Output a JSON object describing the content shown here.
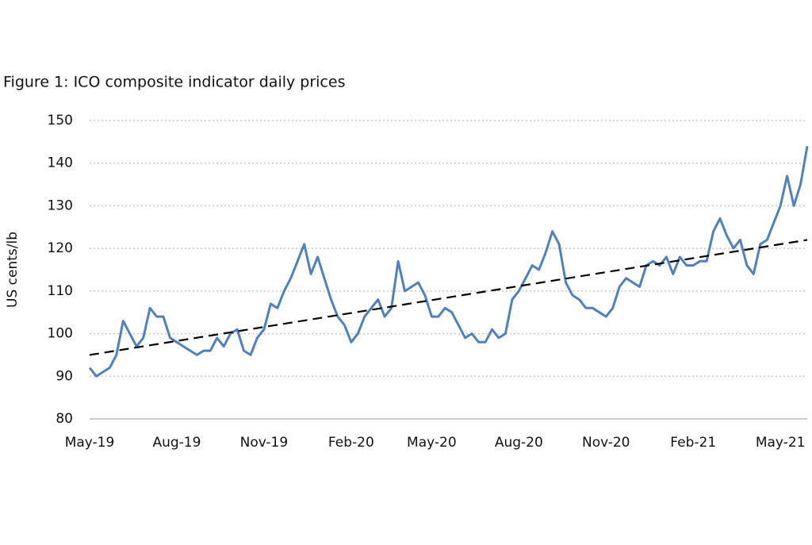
{
  "chart_data": {
    "type": "line",
    "title": "Figure 1: ICO composite indicator daily prices",
    "y_label": "US cents/lb",
    "categories": [
      "May-19",
      null,
      null,
      null,
      null,
      null,
      null,
      null,
      null,
      null,
      null,
      null,
      null,
      "Aug-19",
      null,
      null,
      null,
      null,
      null,
      null,
      null,
      null,
      null,
      null,
      null,
      null,
      "Nov-19",
      null,
      null,
      null,
      null,
      null,
      null,
      null,
      null,
      null,
      null,
      null,
      null,
      "Feb-20",
      null,
      null,
      null,
      null,
      null,
      null,
      null,
      null,
      null,
      null,
      null,
      "May-20",
      null,
      null,
      null,
      null,
      null,
      null,
      null,
      null,
      null,
      null,
      null,
      null,
      "Aug-20",
      null,
      null,
      null,
      null,
      null,
      null,
      null,
      null,
      null,
      null,
      null,
      null,
      "Nov-20",
      null,
      null,
      null,
      null,
      null,
      null,
      null,
      null,
      null,
      null,
      null,
      null,
      "Feb-21",
      null,
      null,
      null,
      null,
      null,
      null,
      null,
      null,
      null,
      null,
      null,
      null,
      "May-21",
      null,
      null,
      null,
      null
    ],
    "series": [
      {
        "color": "#4f81bd",
        "values": [
          92,
          90,
          91,
          92,
          95,
          103,
          100,
          97,
          99,
          106,
          104,
          104,
          99,
          98,
          97,
          96,
          95,
          96,
          96,
          99,
          97,
          100,
          101,
          96,
          95,
          99,
          101,
          107,
          106,
          110,
          113,
          117,
          121,
          114,
          118,
          113,
          108,
          104,
          102,
          98,
          100,
          104,
          106,
          108,
          104,
          106,
          117,
          110,
          111,
          112,
          109,
          104,
          104,
          106,
          105,
          102,
          99,
          100,
          98,
          98,
          101,
          99,
          100,
          108,
          110,
          113,
          116,
          115,
          119,
          124,
          121,
          112,
          109,
          108,
          106,
          106,
          105,
          104,
          106,
          111,
          113,
          112,
          111,
          116,
          117,
          116,
          118,
          114,
          118,
          116,
          116,
          117,
          117,
          124,
          127,
          123,
          120,
          122,
          116,
          114,
          121,
          122,
          126,
          130,
          137,
          130,
          135,
          144
        ]
      }
    ],
    "trend": {
      "start": 95,
      "end": 122,
      "color": "#000000"
    },
    "ylim": [
      80,
      150
    ],
    "yticks": [
      80,
      90,
      100,
      110,
      120,
      130,
      140,
      150
    ],
    "grid": true
  }
}
